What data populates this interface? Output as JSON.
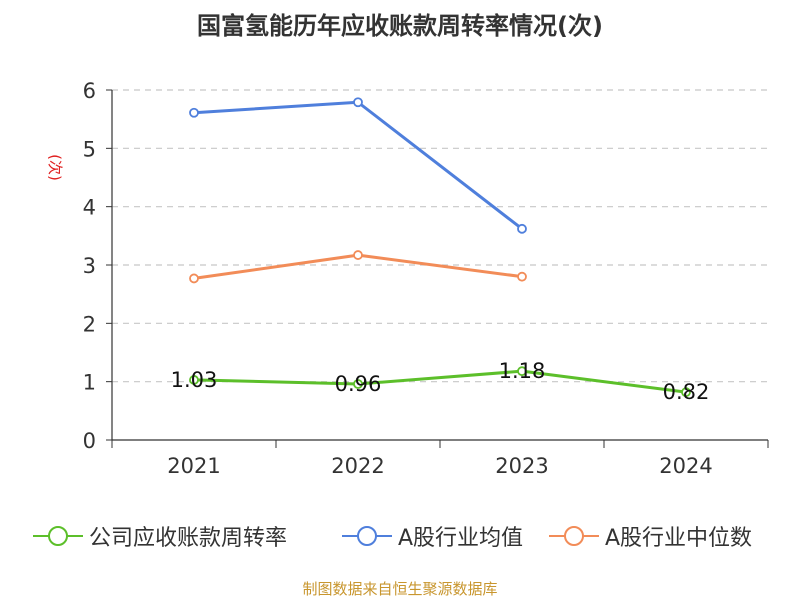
{
  "chart_data": {
    "type": "line",
    "title": "国富氢能历年应收账款周转率情况(次)",
    "ylabel": "(次)",
    "xlabel": "",
    "categories": [
      "2021",
      "2022",
      "2023",
      "2024"
    ],
    "ylim": [
      0,
      6
    ],
    "yticks": [
      "0",
      "1",
      "2",
      "3",
      "4",
      "5",
      "6"
    ],
    "grid": true,
    "legend_position": "bottom",
    "series": [
      {
        "name": "公司应收账款周转率",
        "values": [
          1.03,
          0.96,
          1.18,
          0.82
        ],
        "labels": [
          "1.03",
          "0.96",
          "1.18",
          "0.82"
        ],
        "color": "#5cbf2a"
      },
      {
        "name": "A股行业均值",
        "values": [
          5.61,
          5.79,
          3.62,
          null
        ],
        "color": "#4f7fdc"
      },
      {
        "name": "A股行业中位数",
        "values": [
          2.77,
          3.17,
          2.8,
          null
        ],
        "color": "#f28c58"
      }
    ]
  },
  "source": "制图数据来自恒生聚源数据库"
}
